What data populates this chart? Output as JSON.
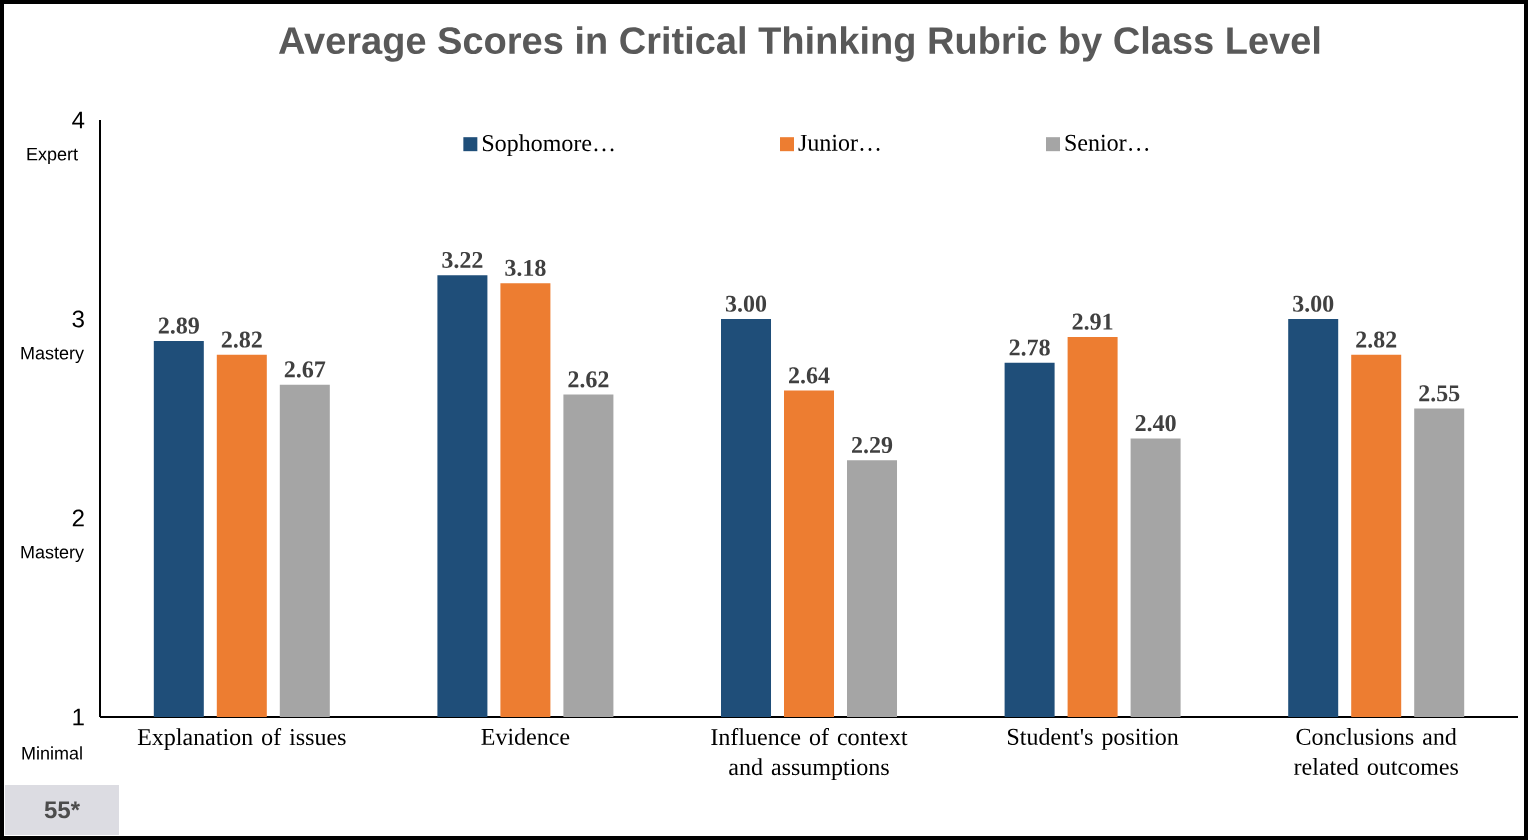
{
  "chart_data": {
    "type": "bar",
    "title": "Average Scores in Critical Thinking Rubric by Class Level",
    "categories": [
      "Explanation of issues",
      "Evidence",
      "Influence of context and assumptions",
      "Student's position",
      "Conclusions and related outcomes"
    ],
    "series": [
      {
        "name": "Sophomore…",
        "color": "#1f4e79",
        "values": [
          2.89,
          3.22,
          3.0,
          2.78,
          3.0
        ],
        "value_labels": [
          "2.89",
          "3.22",
          "3.00",
          "2.78",
          "3.00"
        ]
      },
      {
        "name": "Junior…",
        "color": "#ed7d31",
        "values": [
          2.82,
          3.18,
          2.64,
          2.91,
          2.82
        ],
        "value_labels": [
          "2.82",
          "3.18",
          "2.64",
          "2.91",
          "2.82"
        ]
      },
      {
        "name": "Senior…",
        "color": "#a5a5a5",
        "values": [
          2.67,
          2.62,
          2.29,
          2.4,
          2.55
        ],
        "value_labels": [
          "2.67",
          "2.62",
          "2.29",
          "2.40",
          "2.55"
        ]
      }
    ],
    "ylim": [
      1,
      4
    ],
    "yticks": [
      1,
      2,
      3,
      4
    ],
    "legend": "top",
    "grid": false,
    "annotations": [
      "55*",
      "Minimal",
      "Mastery",
      "Mastery",
      "Expert"
    ]
  }
}
